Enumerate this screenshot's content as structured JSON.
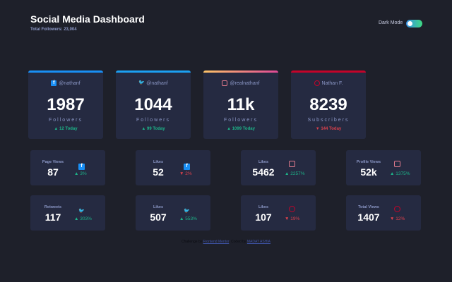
{
  "header": {
    "title": "Social Media Dashboard",
    "total_followers": "Total Followers: 23,004",
    "dark_mode_label": "Dark Mode",
    "dark_mode_on": true
  },
  "colors": {
    "facebook": "#198ff5",
    "twitter": "#1ca0f2",
    "instagram_start": "#fdc468",
    "instagram_end": "#df4996",
    "youtube": "#c4032a",
    "up": "#1db489",
    "down": "#dc414c"
  },
  "followers": [
    {
      "platform": "facebook",
      "icon": "facebook-icon",
      "handle": "@nathanf",
      "count": "1987",
      "label": "Followers",
      "today": "▲ 12 Today",
      "trend": "up"
    },
    {
      "platform": "twitter",
      "icon": "twitter-icon",
      "handle": "@nathanf",
      "count": "1044",
      "label": "Followers",
      "today": "▲ 99 Today",
      "trend": "up"
    },
    {
      "platform": "instagram",
      "icon": "instagram-icon",
      "handle": "@realnathanf",
      "count": "11k",
      "label": "Followers",
      "today": "▲ 1099 Today",
      "trend": "up"
    },
    {
      "platform": "youtube",
      "icon": "youtube-icon",
      "handle": "Nathan F.",
      "count": "8239",
      "label": "Subscribers",
      "today": "▼ 144 Today",
      "trend": "down"
    }
  ],
  "overview": [
    {
      "label": "Page Views",
      "platform": "facebook",
      "value": "87",
      "pct": "▲ 3%",
      "trend": "up"
    },
    {
      "label": "Likes",
      "platform": "facebook",
      "value": "52",
      "pct": "▼ 2%",
      "trend": "down"
    },
    {
      "label": "Likes",
      "platform": "instagram",
      "value": "5462",
      "pct": "▲ 2257%",
      "trend": "up"
    },
    {
      "label": "Profile Views",
      "platform": "instagram",
      "value": "52k",
      "pct": "▲ 1375%",
      "trend": "up"
    },
    {
      "label": "Retweets",
      "platform": "twitter",
      "value": "117",
      "pct": "▲ 303%",
      "trend": "up"
    },
    {
      "label": "Likes",
      "platform": "twitter",
      "value": "507",
      "pct": "▲ 553%",
      "trend": "up"
    },
    {
      "label": "Likes",
      "platform": "youtube",
      "value": "107",
      "pct": "▼ 19%",
      "trend": "down"
    },
    {
      "label": "Total Views",
      "platform": "youtube",
      "value": "1407",
      "pct": "▼ 12%",
      "trend": "down"
    }
  ],
  "footer": {
    "prefix": "Challenge by ",
    "link1": "Frontend Mentor",
    "mid": ". Coded by ",
    "link2": "MADAT ASHIA"
  }
}
